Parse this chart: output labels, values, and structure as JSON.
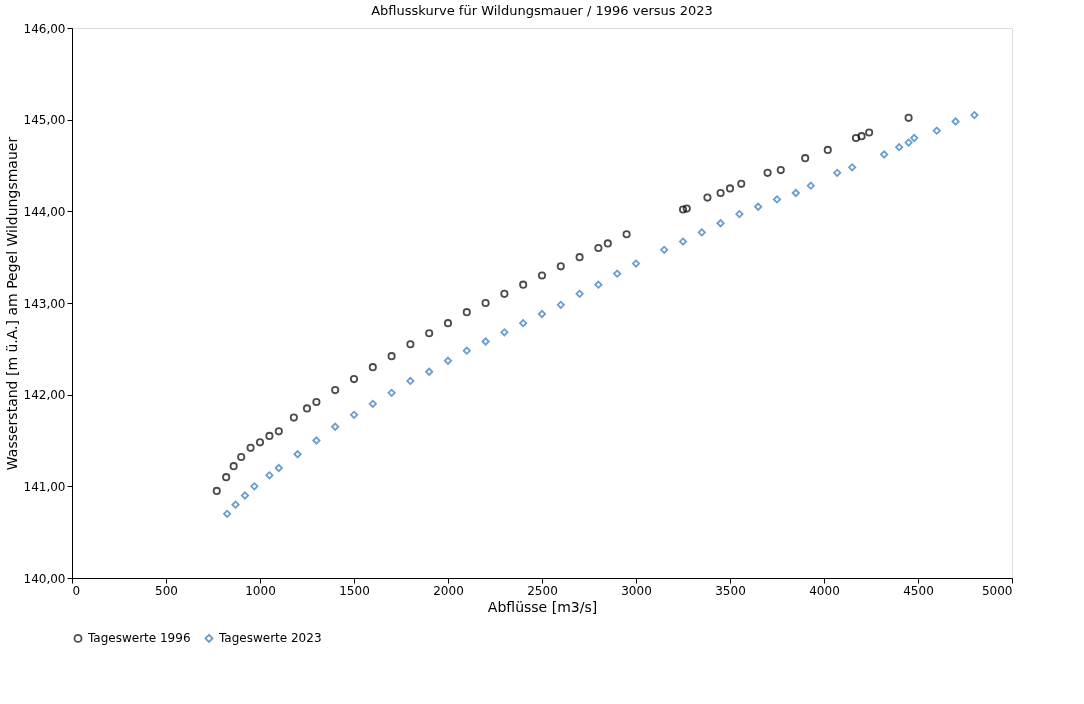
{
  "chart_data": {
    "type": "scatter",
    "title": "Abflusskurve für Wildungsmauer / 1996 versus 2023",
    "xlabel": "Abflüsse [m3/s]",
    "ylabel": "Wasserstand [m ü.A.] am Pegel Wildungsmauer",
    "xlim": [
      0,
      5000
    ],
    "xticks": [
      0,
      500,
      1000,
      1500,
      2000,
      2500,
      3000,
      3500,
      4000,
      4500,
      5000
    ],
    "ylim": [
      140,
      146
    ],
    "yticks": [
      {
        "value": 140,
        "label": "140,00"
      },
      {
        "value": 141,
        "label": "141,00"
      },
      {
        "value": 142,
        "label": "142,00"
      },
      {
        "value": 143,
        "label": "143,00"
      },
      {
        "value": 144,
        "label": "144,00"
      },
      {
        "value": 145,
        "label": "145,00"
      },
      {
        "value": 146,
        "label": "146,00"
      }
    ],
    "grid": false,
    "legend": "bottom",
    "series": [
      {
        "name": "Tageswerte 1996",
        "color": "#000000",
        "marker": "circle",
        "x": [
          770,
          820,
          860,
          900,
          950,
          1000,
          1050,
          1100,
          1180,
          1250,
          1300,
          1400,
          1500,
          1600,
          1700,
          1800,
          1900,
          2000,
          2100,
          2200,
          2300,
          2400,
          2500,
          2600,
          2700,
          2800,
          2850,
          2950,
          3250,
          3270,
          3380,
          3450,
          3500,
          3560,
          3700,
          3770,
          3900,
          4020,
          4170,
          4200,
          4240,
          4450
        ],
        "values": [
          140.95,
          141.1,
          141.22,
          141.32,
          141.42,
          141.48,
          141.55,
          141.6,
          141.75,
          141.85,
          141.92,
          142.05,
          142.17,
          142.3,
          142.42,
          142.55,
          142.67,
          142.78,
          142.9,
          143.0,
          143.1,
          143.2,
          143.3,
          143.4,
          143.5,
          143.6,
          143.65,
          143.75,
          144.02,
          144.03,
          144.15,
          144.2,
          144.25,
          144.3,
          144.42,
          144.45,
          144.58,
          144.67,
          144.8,
          144.82,
          144.86,
          145.02
        ]
      },
      {
        "name": "Tageswerte 2023",
        "color": "#2e75b6",
        "marker": "diamond",
        "x": [
          825,
          870,
          920,
          970,
          1050,
          1100,
          1200,
          1300,
          1400,
          1500,
          1600,
          1700,
          1800,
          1900,
          2000,
          2100,
          2200,
          2300,
          2400,
          2500,
          2600,
          2700,
          2800,
          2900,
          3000,
          3150,
          3250,
          3350,
          3450,
          3550,
          3650,
          3750,
          3850,
          3930,
          4070,
          4150,
          4320,
          4400,
          4450,
          4480,
          4600,
          4700,
          4800
        ],
        "values": [
          140.7,
          140.8,
          140.9,
          141.0,
          141.12,
          141.2,
          141.35,
          141.5,
          141.65,
          141.78,
          141.9,
          142.02,
          142.15,
          142.25,
          142.37,
          142.48,
          142.58,
          142.68,
          142.78,
          142.88,
          142.98,
          143.1,
          143.2,
          143.32,
          143.43,
          143.58,
          143.67,
          143.77,
          143.87,
          143.97,
          144.05,
          144.13,
          144.2,
          144.28,
          144.42,
          144.48,
          144.62,
          144.7,
          144.75,
          144.8,
          144.88,
          144.98,
          145.05
        ]
      }
    ]
  }
}
